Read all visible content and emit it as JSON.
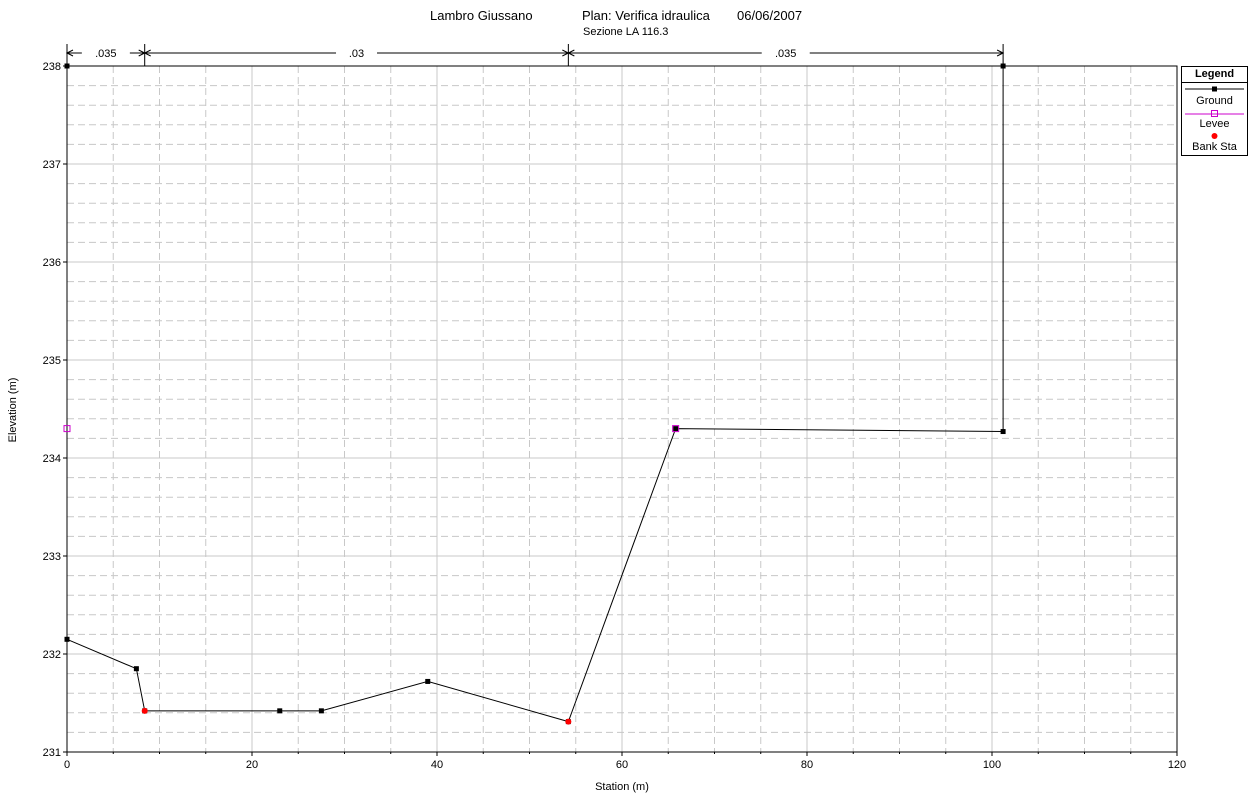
{
  "header": {
    "river": "Lambro Giussano",
    "plan": "Plan: Verifica idraulica",
    "date": "06/06/2007",
    "subtitle": "Sezione LA 116.3"
  },
  "legend": {
    "title": "Legend",
    "items": [
      {
        "label": "Ground",
        "color": "#000000",
        "marker": "square-filled"
      },
      {
        "label": "Levee",
        "color": "#cc00cc",
        "marker": "square-open"
      },
      {
        "label": "Bank Sta",
        "color": "#ff0000",
        "marker": "circle-filled"
      }
    ]
  },
  "chart_data": {
    "type": "line",
    "xlabel": "Station (m)",
    "ylabel": "Elevation (m)",
    "xlim": [
      0,
      120
    ],
    "ylim": [
      231,
      238
    ],
    "x_ticks": [
      0,
      20,
      40,
      60,
      80,
      100,
      120
    ],
    "y_ticks": [
      231,
      232,
      233,
      234,
      235,
      236,
      237,
      238
    ],
    "grid": true,
    "legend_position": "right",
    "series": [
      {
        "name": "Ground",
        "color": "#000000",
        "points": [
          [
            0,
            238.0
          ],
          [
            0,
            232.15
          ],
          [
            7.5,
            231.85
          ],
          [
            8.4,
            231.42
          ],
          [
            23.0,
            231.42
          ],
          [
            27.5,
            231.42
          ],
          [
            39.0,
            231.72
          ],
          [
            54.2,
            231.31
          ],
          [
            65.8,
            234.3
          ],
          [
            101.2,
            234.27
          ],
          [
            101.2,
            238.0
          ]
        ]
      },
      {
        "name": "Levee",
        "color": "#cc00cc",
        "points": [
          [
            0,
            234.3
          ],
          [
            65.8,
            234.3
          ]
        ]
      },
      {
        "name": "Bank Sta",
        "color": "#ff0000",
        "points": [
          [
            8.4,
            231.42
          ],
          [
            54.2,
            231.31
          ]
        ]
      }
    ],
    "manning": {
      "boundaries": [
        0,
        8.4,
        54.2,
        101.2
      ],
      "labels": [
        ".035",
        ".03",
        ".035"
      ]
    }
  }
}
